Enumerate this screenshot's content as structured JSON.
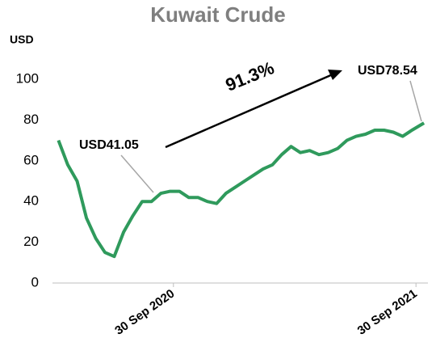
{
  "chart_data": {
    "type": "line",
    "title": "Kuwait Crude",
    "y_label": "USD",
    "x": [
      "2020-04-10",
      "2020-04-24",
      "2020-05-08",
      "2020-05-22",
      "2020-06-05",
      "2020-06-19",
      "2020-07-03",
      "2020-07-17",
      "2020-07-31",
      "2020-08-14",
      "2020-08-28",
      "2020-09-11",
      "2020-09-25",
      "2020-10-09",
      "2020-10-23",
      "2020-11-06",
      "2020-11-20",
      "2020-12-04",
      "2020-12-18",
      "2021-01-01",
      "2021-01-15",
      "2021-01-29",
      "2021-02-12",
      "2021-02-26",
      "2021-03-12",
      "2021-03-26",
      "2021-04-09",
      "2021-04-23",
      "2021-05-07",
      "2021-05-21",
      "2021-06-04",
      "2021-06-18",
      "2021-07-02",
      "2021-07-16",
      "2021-07-30",
      "2021-08-13",
      "2021-08-27",
      "2021-09-10",
      "2021-09-24",
      "2021-10-12"
    ],
    "series": [
      {
        "name": "Kuwait Crude",
        "color": "#2f9a5c",
        "values": [
          70,
          58,
          50,
          32,
          22,
          15,
          13,
          25,
          33,
          40,
          40,
          44,
          45,
          45,
          42,
          42,
          40,
          39,
          44,
          47,
          50,
          53,
          56,
          58,
          63,
          67,
          64,
          65,
          63,
          64,
          66,
          70,
          72,
          73,
          75,
          75,
          74,
          72,
          75,
          78.54
        ]
      }
    ],
    "xlim": [
      "2020-04-01",
      "2021-10-18"
    ],
    "xticks": [
      {
        "value": "2020-09-30",
        "label": "30 Sep 2020"
      },
      {
        "value": "2021-09-30",
        "label": "30 Sep 2021"
      }
    ],
    "ylim": [
      0,
      100
    ],
    "yticks": [
      0,
      20,
      40,
      60,
      80,
      100
    ],
    "grid": false,
    "annotations": [
      "91.3%",
      "USD41.05",
      "USD78.54"
    ]
  }
}
